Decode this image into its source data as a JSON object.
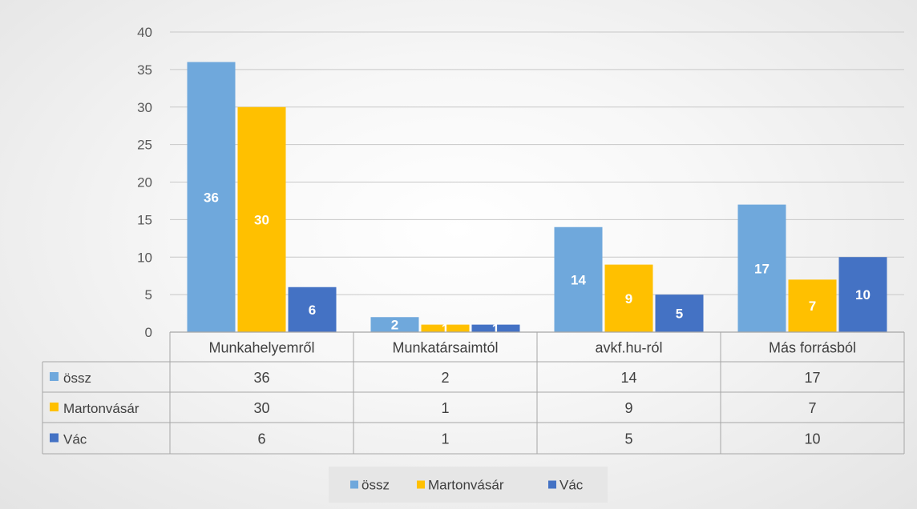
{
  "chart_data": {
    "type": "bar",
    "categories": [
      "Munkahelyemről",
      "Munkatársaimtól",
      "avkf.hu-ról",
      "Más forrásból"
    ],
    "series": [
      {
        "name": "össz",
        "values": [
          36,
          2,
          14,
          17
        ],
        "color": "#6fa8dc"
      },
      {
        "name": "Martonvásár",
        "values": [
          30,
          1,
          9,
          7
        ],
        "color": "#ffc000"
      },
      {
        "name": "Vác",
        "values": [
          6,
          1,
          5,
          10
        ],
        "color": "#4472c4"
      }
    ],
    "ylim": [
      0,
      40
    ],
    "yticks": [
      0,
      5,
      10,
      15,
      20,
      25,
      30,
      35,
      40
    ],
    "grid": true,
    "data_table": true,
    "legend_position": "bottom",
    "data_labels": true
  }
}
